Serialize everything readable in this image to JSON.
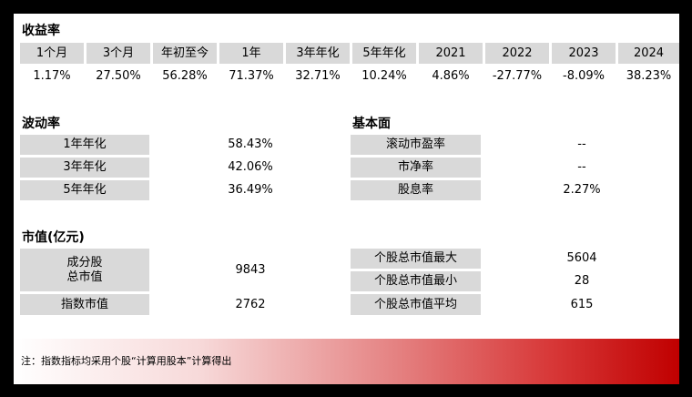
{
  "returns": {
    "title": "收益率",
    "headers": [
      "1个月",
      "3个月",
      "年初至今",
      "1年",
      "3年年化",
      "5年年化",
      "2021",
      "2022",
      "2023",
      "2024"
    ],
    "values": [
      "1.17%",
      "27.50%",
      "56.28%",
      "71.37%",
      "32.71%",
      "10.24%",
      "4.86%",
      "-27.77%",
      "-8.09%",
      "38.23%"
    ]
  },
  "volatility": {
    "title": "波动率",
    "rows": [
      {
        "label": "1年年化",
        "value": "58.43%"
      },
      {
        "label": "3年年化",
        "value": "42.06%"
      },
      {
        "label": "5年年化",
        "value": "36.49%"
      }
    ]
  },
  "fundamentals": {
    "title": "基本面",
    "rows": [
      {
        "label": "滚动市盈率",
        "value": "--"
      },
      {
        "label": "市净率",
        "value": "--"
      },
      {
        "label": "股息率",
        "value": "2.27%"
      }
    ]
  },
  "market_cap": {
    "title": "市值(亿元)",
    "constituent_label_line1": "成分股",
    "constituent_label_line2": "总市值",
    "constituent_value": "9843",
    "index_label": "指数市值",
    "index_value": "2762",
    "stock_rows": [
      {
        "label": "个股总市值最大",
        "value": "5604"
      },
      {
        "label": "个股总市值最小",
        "value": "28"
      },
      {
        "label": "个股总市值平均",
        "value": "615"
      }
    ]
  },
  "footer": {
    "note": "注：指数指标均采用个股“计算用股本”计算得出"
  }
}
